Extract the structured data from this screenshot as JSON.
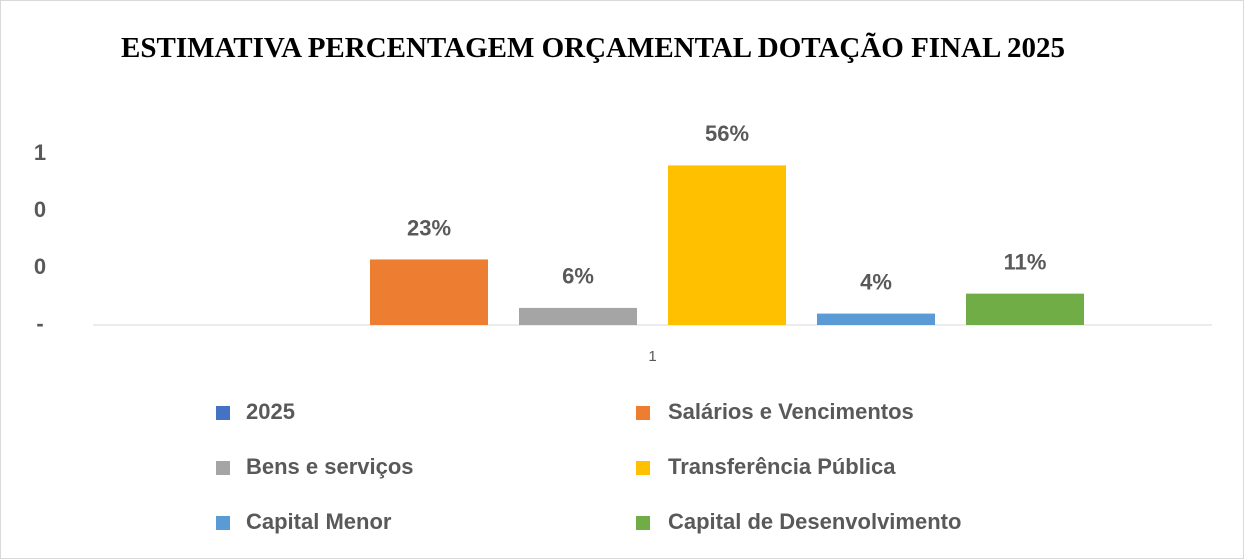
{
  "chart_data": {
    "type": "bar",
    "title": "ESTIMATIVA PERCENTAGEM ORÇAMENTAL DOTAÇÃO FINAL 2025",
    "categories": [
      "1"
    ],
    "series": [
      {
        "name": "2025",
        "color": "#4472c4",
        "values": [
          null
        ]
      },
      {
        "name": "Salários e Vencimentos",
        "color": "#ed7d31",
        "values": [
          0.23
        ],
        "value_labels": [
          "23%"
        ]
      },
      {
        "name": "Bens e serviços",
        "color": "#a5a5a5",
        "values": [
          0.06
        ],
        "value_labels": [
          "6%"
        ]
      },
      {
        "name": "Transferência Pública",
        "color": "#ffc000",
        "values": [
          0.56
        ],
        "value_labels": [
          "56%"
        ]
      },
      {
        "name": "Capital Menor",
        "color": "#5b9bd5",
        "values": [
          0.04
        ],
        "value_labels": [
          "4%"
        ]
      },
      {
        "name": "Capital de Desenvolvimento",
        "color": "#70ad47",
        "values": [
          0.11
        ],
        "value_labels": [
          "11%"
        ]
      }
    ],
    "ylim": [
      0,
      0.6
    ],
    "yticks": [
      {
        "value": 0,
        "label": "-"
      },
      {
        "value": 0.2,
        "label": "0"
      },
      {
        "value": 0.4,
        "label": "0"
      },
      {
        "value": 0.6,
        "label": "1"
      }
    ],
    "legend": "bottom"
  }
}
